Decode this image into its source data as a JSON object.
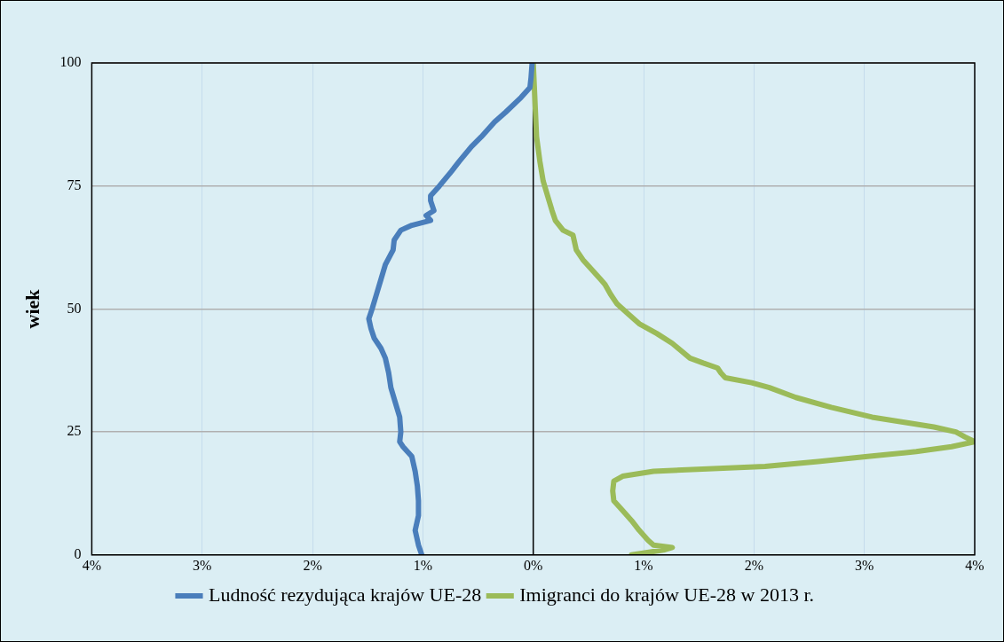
{
  "chart_data": {
    "type": "line",
    "ylabel": "wiek",
    "xlim": [
      -4,
      4
    ],
    "ylim": [
      0,
      100
    ],
    "xticks": [
      {
        "value": -4,
        "label": "4%"
      },
      {
        "value": -3,
        "label": "3%"
      },
      {
        "value": -2,
        "label": "2%"
      },
      {
        "value": -1,
        "label": "1%"
      },
      {
        "value": 0,
        "label": "0%"
      },
      {
        "value": 1,
        "label": "1%"
      },
      {
        "value": 2,
        "label": "2%"
      },
      {
        "value": 3,
        "label": "3%"
      },
      {
        "value": 4,
        "label": "4%"
      }
    ],
    "yticks": [
      0,
      25,
      50,
      75,
      100
    ],
    "grid": true,
    "legend": "bottom",
    "marker": "none",
    "line_style": "solid",
    "ref_lines": [
      {
        "axis": "x",
        "value": 0,
        "color": "#000000"
      }
    ],
    "series": [
      {
        "name": "Ludność rezydująca krajów UE-28",
        "color": "#4a7ebb",
        "x": [
          -1.01,
          -1.04,
          -1.07,
          -1.04,
          -1.04,
          -1.05,
          -1.07,
          -1.1,
          -1.18,
          -1.21,
          -1.2,
          -1.21,
          -1.25,
          -1.29,
          -1.31,
          -1.34,
          -1.38,
          -1.44,
          -1.47,
          -1.49,
          -1.46,
          -1.42,
          -1.38,
          -1.34,
          -1.27,
          -1.26,
          -1.2,
          -1.1,
          -0.93,
          -0.97,
          -0.9,
          -0.93,
          -0.93,
          -0.85,
          -0.74,
          -0.67,
          -0.56,
          -0.47,
          -0.35,
          -0.25,
          -0.11,
          -0.03,
          -0.02,
          -0.01
        ],
        "values": [
          0,
          2,
          5,
          8,
          11,
          14,
          17,
          20,
          22,
          23,
          25,
          28,
          31,
          34,
          37,
          40,
          42,
          44,
          46,
          48,
          50,
          53,
          56,
          59,
          62,
          64,
          66,
          67,
          68,
          69,
          70,
          72,
          73,
          75,
          78,
          80,
          83,
          85,
          88,
          90,
          93,
          95,
          97,
          100
        ]
      },
      {
        "name": "Imigranci do krajów UE-28 w 2013 r.",
        "color": "#9bbb59",
        "x": [
          0.89,
          1.18,
          1.26,
          1.09,
          1.04,
          0.96,
          0.89,
          0.81,
          0.73,
          0.72,
          0.73,
          0.81,
          1.09,
          2.1,
          2.58,
          3.03,
          3.47,
          3.79,
          4.0,
          3.91,
          3.83,
          3.63,
          3.35,
          3.07,
          2.7,
          2.38,
          2.14,
          1.98,
          1.74,
          1.7,
          1.67,
          1.54,
          1.42,
          1.26,
          1.12,
          0.96,
          0.86,
          0.76,
          0.7,
          0.65,
          0.61,
          0.53,
          0.45,
          0.39,
          0.37,
          0.36,
          0.27,
          0.2,
          0.17,
          0.13,
          0.09,
          0.06,
          0.03,
          0.02,
          0.01,
          0.0
        ],
        "values": [
          0,
          1,
          1.5,
          2,
          3,
          5,
          7,
          9,
          11,
          13,
          15,
          16,
          17,
          18,
          19,
          20,
          21,
          22,
          23,
          24,
          25,
          26,
          27,
          28,
          30,
          32,
          34,
          35,
          36,
          37,
          38,
          39,
          40,
          43,
          45,
          47,
          49,
          51,
          53,
          55,
          56,
          58,
          60,
          62,
          64,
          65,
          66,
          68,
          70,
          73,
          76,
          80,
          85,
          90,
          95,
          100
        ]
      }
    ]
  }
}
